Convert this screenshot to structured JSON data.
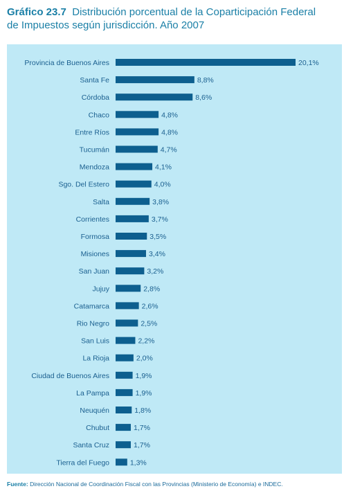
{
  "header": {
    "number": "Gráfico 23.7",
    "title": "Distribución porcentual de la Coparticipación Federal",
    "title_line2": "de Impuestos según jurisdicción. Año 2007"
  },
  "source": {
    "label": "Fuente:",
    "text": "Dirección Nacional de Coordinación Fiscal con las Provincias (Ministerio de Economía) e INDEC."
  },
  "colors": {
    "bar": "#0d5f8f",
    "background": "#bfe9f6",
    "title": "#1a7fa6",
    "label": "#1a5f8f"
  },
  "chart_data": {
    "type": "bar",
    "orientation": "horizontal",
    "categories": [
      "Provincia de Buenos Aires",
      "Santa Fe",
      "Córdoba",
      "Chaco",
      "Entre Ríos",
      "Tucumán",
      "Mendoza",
      "Sgo. Del Estero",
      "Salta",
      "Corrientes",
      "Formosa",
      "Misiones",
      "San Juan",
      "Jujuy",
      "Catamarca",
      "Rio Negro",
      "San Luis",
      "La Rioja",
      "Ciudad de Buenos Aires",
      "La Pampa",
      "Neuquén",
      "Chubut",
      "Santa Cruz",
      "Tierra del Fuego"
    ],
    "values": [
      20.1,
      8.8,
      8.6,
      4.8,
      4.8,
      4.7,
      4.1,
      4.0,
      3.8,
      3.7,
      3.5,
      3.4,
      3.2,
      2.8,
      2.6,
      2.5,
      2.2,
      2.0,
      1.9,
      1.9,
      1.8,
      1.7,
      1.7,
      1.3
    ],
    "value_labels": [
      "20,1%",
      "8,8%",
      "8,6%",
      "4,8%",
      "4,8%",
      "4,7%",
      "4,1%",
      "4,0%",
      "3,8%",
      "3,7%",
      "3,5%",
      "3,4%",
      "3,2%",
      "2,8%",
      "2,6%",
      "2,5%",
      "2,2%",
      "2,0%",
      "1,9%",
      "1,9%",
      "1,8%",
      "1,7%",
      "1,7%",
      "1,3%"
    ],
    "xlim": [
      0,
      20.1
    ],
    "grid": false,
    "legend": "none"
  }
}
